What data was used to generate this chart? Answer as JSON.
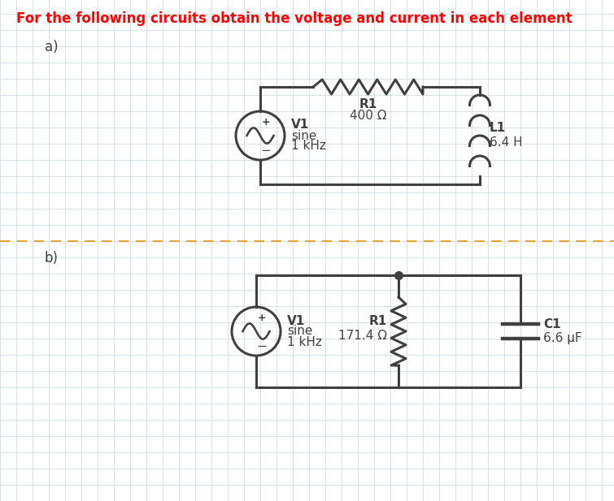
{
  "title": "For the following circuits obtain the voltage and current in each element",
  "title_color": "#ff0000",
  "background_color": "#ffffff",
  "grid_color": "#c8d4dc",
  "circuit_color": "#404040",
  "divider_color": "#e8a030",
  "label_a": "a)",
  "label_b": "b)",
  "circuit_a": {
    "R1_label": "R1",
    "R1_value": "400 Ω",
    "V1_label": "V1",
    "V1_sub1": "sine",
    "V1_sub2": "1 kHz",
    "L1_label": "L1",
    "L1_value": "6.4 H"
  },
  "circuit_b": {
    "V1_label": "V1",
    "V1_sub1": "sine",
    "V1_sub2": "1 kHz",
    "R1_label": "R1",
    "R1_value": "171.4 Ω",
    "C1_label": "C1",
    "C1_value": "6.6 μF"
  }
}
